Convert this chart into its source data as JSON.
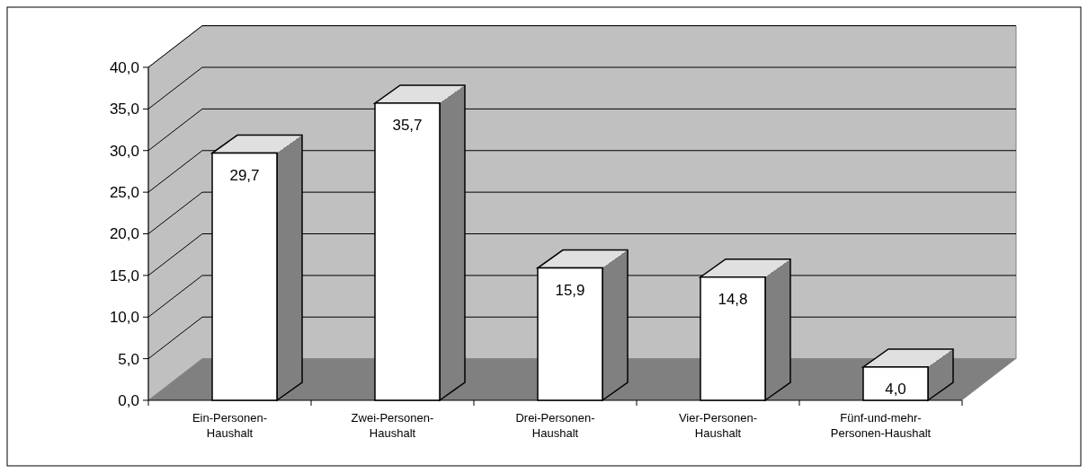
{
  "chart_data": {
    "type": "bar",
    "categories": [
      "Ein-Personen-\nHaushalt",
      "Zwei-Personen-\nHaushalt",
      "Drei-Personen-\nHaushalt",
      "Vier-Personen-\nHaushalt",
      "Fünf-und-mehr-\nPersonen-Haushalt"
    ],
    "values": [
      29.7,
      35.7,
      15.9,
      14.8,
      4.0
    ],
    "value_labels": [
      "29,7",
      "35,7",
      "15,9",
      "14,8",
      "4,0"
    ],
    "color": "#ffffff",
    "ylim": [
      0,
      40
    ],
    "yticks": [
      {
        "value": 0,
        "label": "0,0"
      },
      {
        "value": 5,
        "label": "5,0"
      },
      {
        "value": 10,
        "label": "10,0"
      },
      {
        "value": 15,
        "label": "15,0"
      },
      {
        "value": 20,
        "label": "20,0"
      },
      {
        "value": 25,
        "label": "25,0"
      },
      {
        "value": 30,
        "label": "30,0"
      },
      {
        "value": 35,
        "label": "35,0"
      },
      {
        "value": 40,
        "label": "40,0"
      }
    ],
    "grid": "y",
    "legend": false
  }
}
